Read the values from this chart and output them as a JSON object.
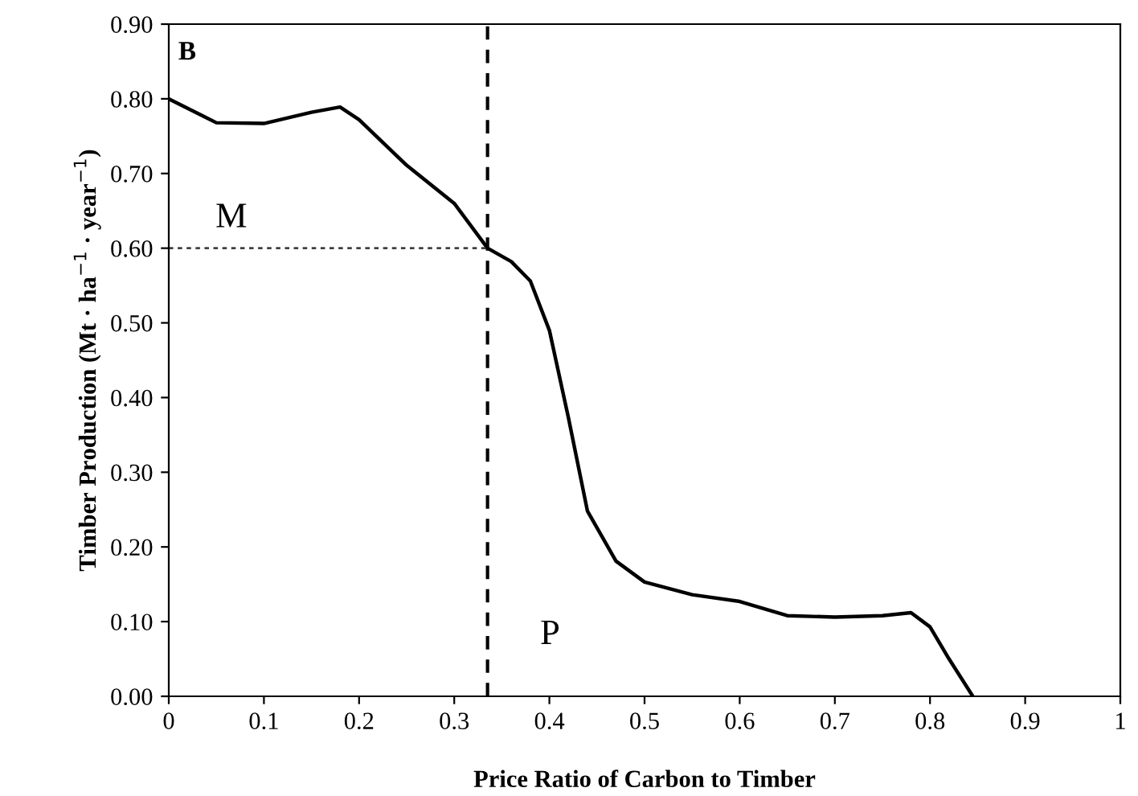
{
  "chart_data": {
    "type": "line",
    "xlabel": "Price Ratio of Carbon to Timber",
    "ylabel": "Timber Production (Mt · ha$^{−1}$ · year$^{−1}$)",
    "series": [
      {
        "color": "#000000",
        "line_style": "solid",
        "x": [
          0,
          0.05,
          0.1,
          0.15,
          0.18,
          0.2,
          0.25,
          0.3,
          0.335,
          0.36,
          0.38,
          0.4,
          0.42,
          0.44,
          0.47,
          0.5,
          0.55,
          0.6,
          0.65,
          0.7,
          0.75,
          0.78,
          0.8,
          0.82,
          0.845
        ],
        "values": [
          0.8,
          0.768,
          0.767,
          0.782,
          0.789,
          0.772,
          0.711,
          0.66,
          0.6,
          0.582,
          0.556,
          0.49,
          0.373,
          0.248,
          0.181,
          0.153,
          0.136,
          0.127,
          0.108,
          0.106,
          0.108,
          0.112,
          0.093,
          0.05,
          0.0
        ]
      },
      {
        "color": "#404040",
        "line_style": "dotted",
        "x": [
          0,
          0.335
        ],
        "values": [
          0.6,
          0.6
        ]
      }
    ],
    "ref_lines": [
      {
        "axis": "x",
        "value": 0.335,
        "color": "#000000",
        "line_style": "dashed"
      }
    ],
    "annotations": [
      "B",
      {
        "text": "M",
        "x": 0,
        "y": 0.6
      },
      {
        "text": "P",
        "x": 0.335,
        "y": 0
      }
    ],
    "xlim": [
      0,
      1
    ],
    "xticks": [
      0,
      0.1,
      0.2,
      0.3,
      0.4,
      0.5,
      0.6,
      0.7,
      0.8,
      0.9,
      1
    ],
    "ylim": [
      0,
      0.9
    ],
    "yticks": [
      {
        "value": 0,
        "label": "0.00"
      },
      {
        "value": 0.1,
        "label": "0.10"
      },
      {
        "value": 0.2,
        "label": "0.20"
      },
      {
        "value": 0.3,
        "label": "0.30"
      },
      {
        "value": 0.4,
        "label": "0.40"
      },
      {
        "value": 0.5,
        "label": "0.50"
      },
      {
        "value": 0.6,
        "label": "0.60"
      },
      {
        "value": 0.7,
        "label": "0.70"
      },
      {
        "value": 0.8,
        "label": "0.80"
      },
      {
        "value": 0.9,
        "label": "0.90"
      }
    ],
    "grid": false,
    "legend": false,
    "marker": "none"
  }
}
